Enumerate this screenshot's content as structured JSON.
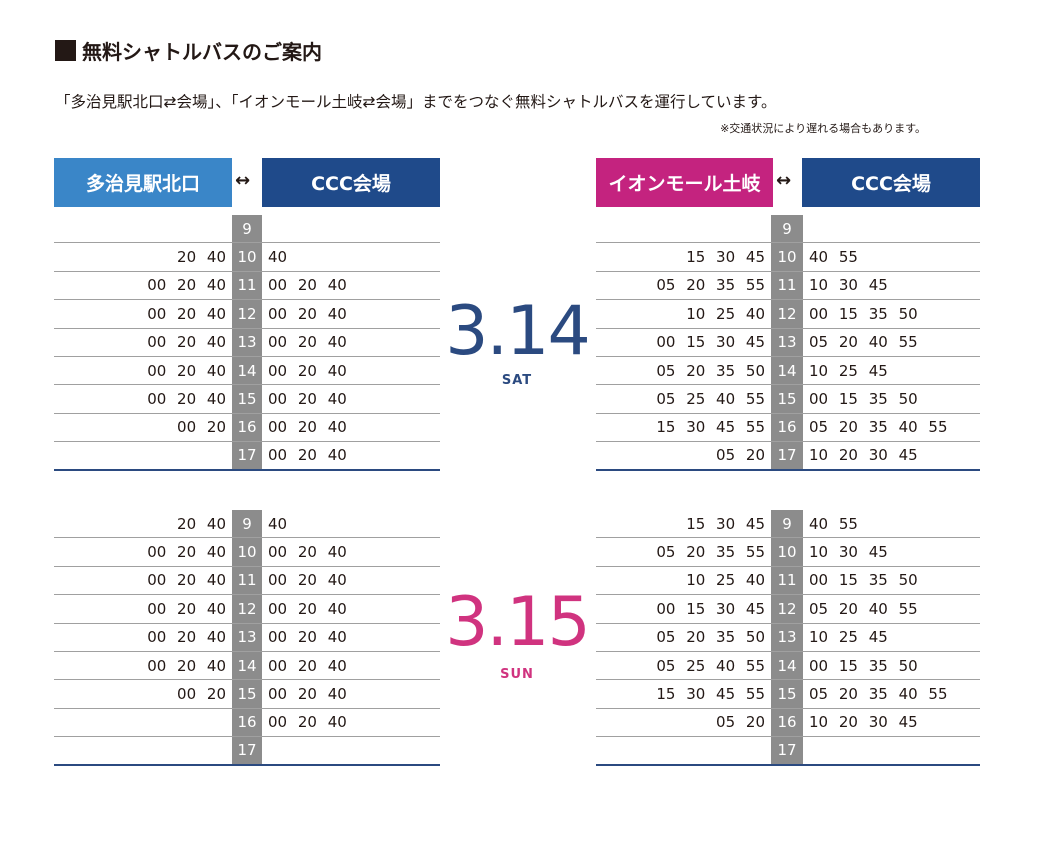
{
  "title": "無料シャトルバスのご案内",
  "subtitle": "「多治見駅北口⇄会場」、「イオンモール土岐⇄会場」までをつなぐ無料シャトルバスを運行しています。",
  "note": "※交通状況により遅れる場合もあります。",
  "colors": {
    "blue": "#3a86c8",
    "navy": "#1f4a8a",
    "magenta": "#c4237f",
    "sat": "#2b4a80",
    "sun": "#d0337f",
    "hour_bg": "#8c8c8c"
  },
  "routes": [
    {
      "from": "多治見駅北口",
      "arrow": "↔",
      "to": "CCC会場"
    },
    {
      "from": "イオンモール土岐",
      "arrow": "↔",
      "to": "CCC会場"
    }
  ],
  "days": [
    {
      "date": "3.14",
      "dow": "SAT",
      "tables": [
        {
          "rows": [
            {
              "hour": "9",
              "out": "",
              "back": ""
            },
            {
              "hour": "10",
              "out": "20 40",
              "back": "40"
            },
            {
              "hour": "11",
              "out": "00 20 40",
              "back": "00 20 40"
            },
            {
              "hour": "12",
              "out": "00 20 40",
              "back": "00 20 40"
            },
            {
              "hour": "13",
              "out": "00 20 40",
              "back": "00 20 40"
            },
            {
              "hour": "14",
              "out": "00 20 40",
              "back": "00 20 40"
            },
            {
              "hour": "15",
              "out": "00 20 40",
              "back": "00 20 40"
            },
            {
              "hour": "16",
              "out": "00 20",
              "back": "00 20 40"
            },
            {
              "hour": "17",
              "out": "",
              "back": "00 20 40"
            }
          ]
        },
        {
          "rows": [
            {
              "hour": "9",
              "out": "",
              "back": ""
            },
            {
              "hour": "10",
              "out": "15 30 45",
              "back": "40 55"
            },
            {
              "hour": "11",
              "out": "05 20 35 55",
              "back": "10 30 45"
            },
            {
              "hour": "12",
              "out": "10 25 40",
              "back": "00 15 35 50"
            },
            {
              "hour": "13",
              "out": "00 15 30 45",
              "back": "05 20 40 55"
            },
            {
              "hour": "14",
              "out": "05 20 35 50",
              "back": "10 25 45"
            },
            {
              "hour": "15",
              "out": "05 25 40 55",
              "back": "00 15 35 50"
            },
            {
              "hour": "16",
              "out": "15 30 45 55",
              "back": "05 20 35 40 55"
            },
            {
              "hour": "17",
              "out": "05 20",
              "back": "10 20 30 45"
            }
          ]
        }
      ]
    },
    {
      "date": "3.15",
      "dow": "SUN",
      "tables": [
        {
          "rows": [
            {
              "hour": "9",
              "out": "20 40",
              "back": "40"
            },
            {
              "hour": "10",
              "out": "00 20 40",
              "back": "00 20 40"
            },
            {
              "hour": "11",
              "out": "00 20 40",
              "back": "00 20 40"
            },
            {
              "hour": "12",
              "out": "00 20 40",
              "back": "00 20 40"
            },
            {
              "hour": "13",
              "out": "00 20 40",
              "back": "00 20 40"
            },
            {
              "hour": "14",
              "out": "00 20 40",
              "back": "00 20 40"
            },
            {
              "hour": "15",
              "out": "00 20",
              "back": "00 20 40"
            },
            {
              "hour": "16",
              "out": "",
              "back": "00 20 40"
            },
            {
              "hour": "17",
              "out": "",
              "back": ""
            }
          ]
        },
        {
          "rows": [
            {
              "hour": "9",
              "out": "15 30 45",
              "back": "40 55"
            },
            {
              "hour": "10",
              "out": "05 20 35 55",
              "back": "10 30 45"
            },
            {
              "hour": "11",
              "out": "10 25 40",
              "back": "00 15 35 50"
            },
            {
              "hour": "12",
              "out": "00 15 30 45",
              "back": "05 20 40 55"
            },
            {
              "hour": "13",
              "out": "05 20 35 50",
              "back": "10 25 45"
            },
            {
              "hour": "14",
              "out": "05 25 40 55",
              "back": "00 15 35 50"
            },
            {
              "hour": "15",
              "out": "15 30 45 55",
              "back": "05 20 35 40 55"
            },
            {
              "hour": "16",
              "out": "05 20",
              "back": "10 20 30 45"
            },
            {
              "hour": "17",
              "out": "",
              "back": ""
            }
          ]
        }
      ]
    }
  ]
}
